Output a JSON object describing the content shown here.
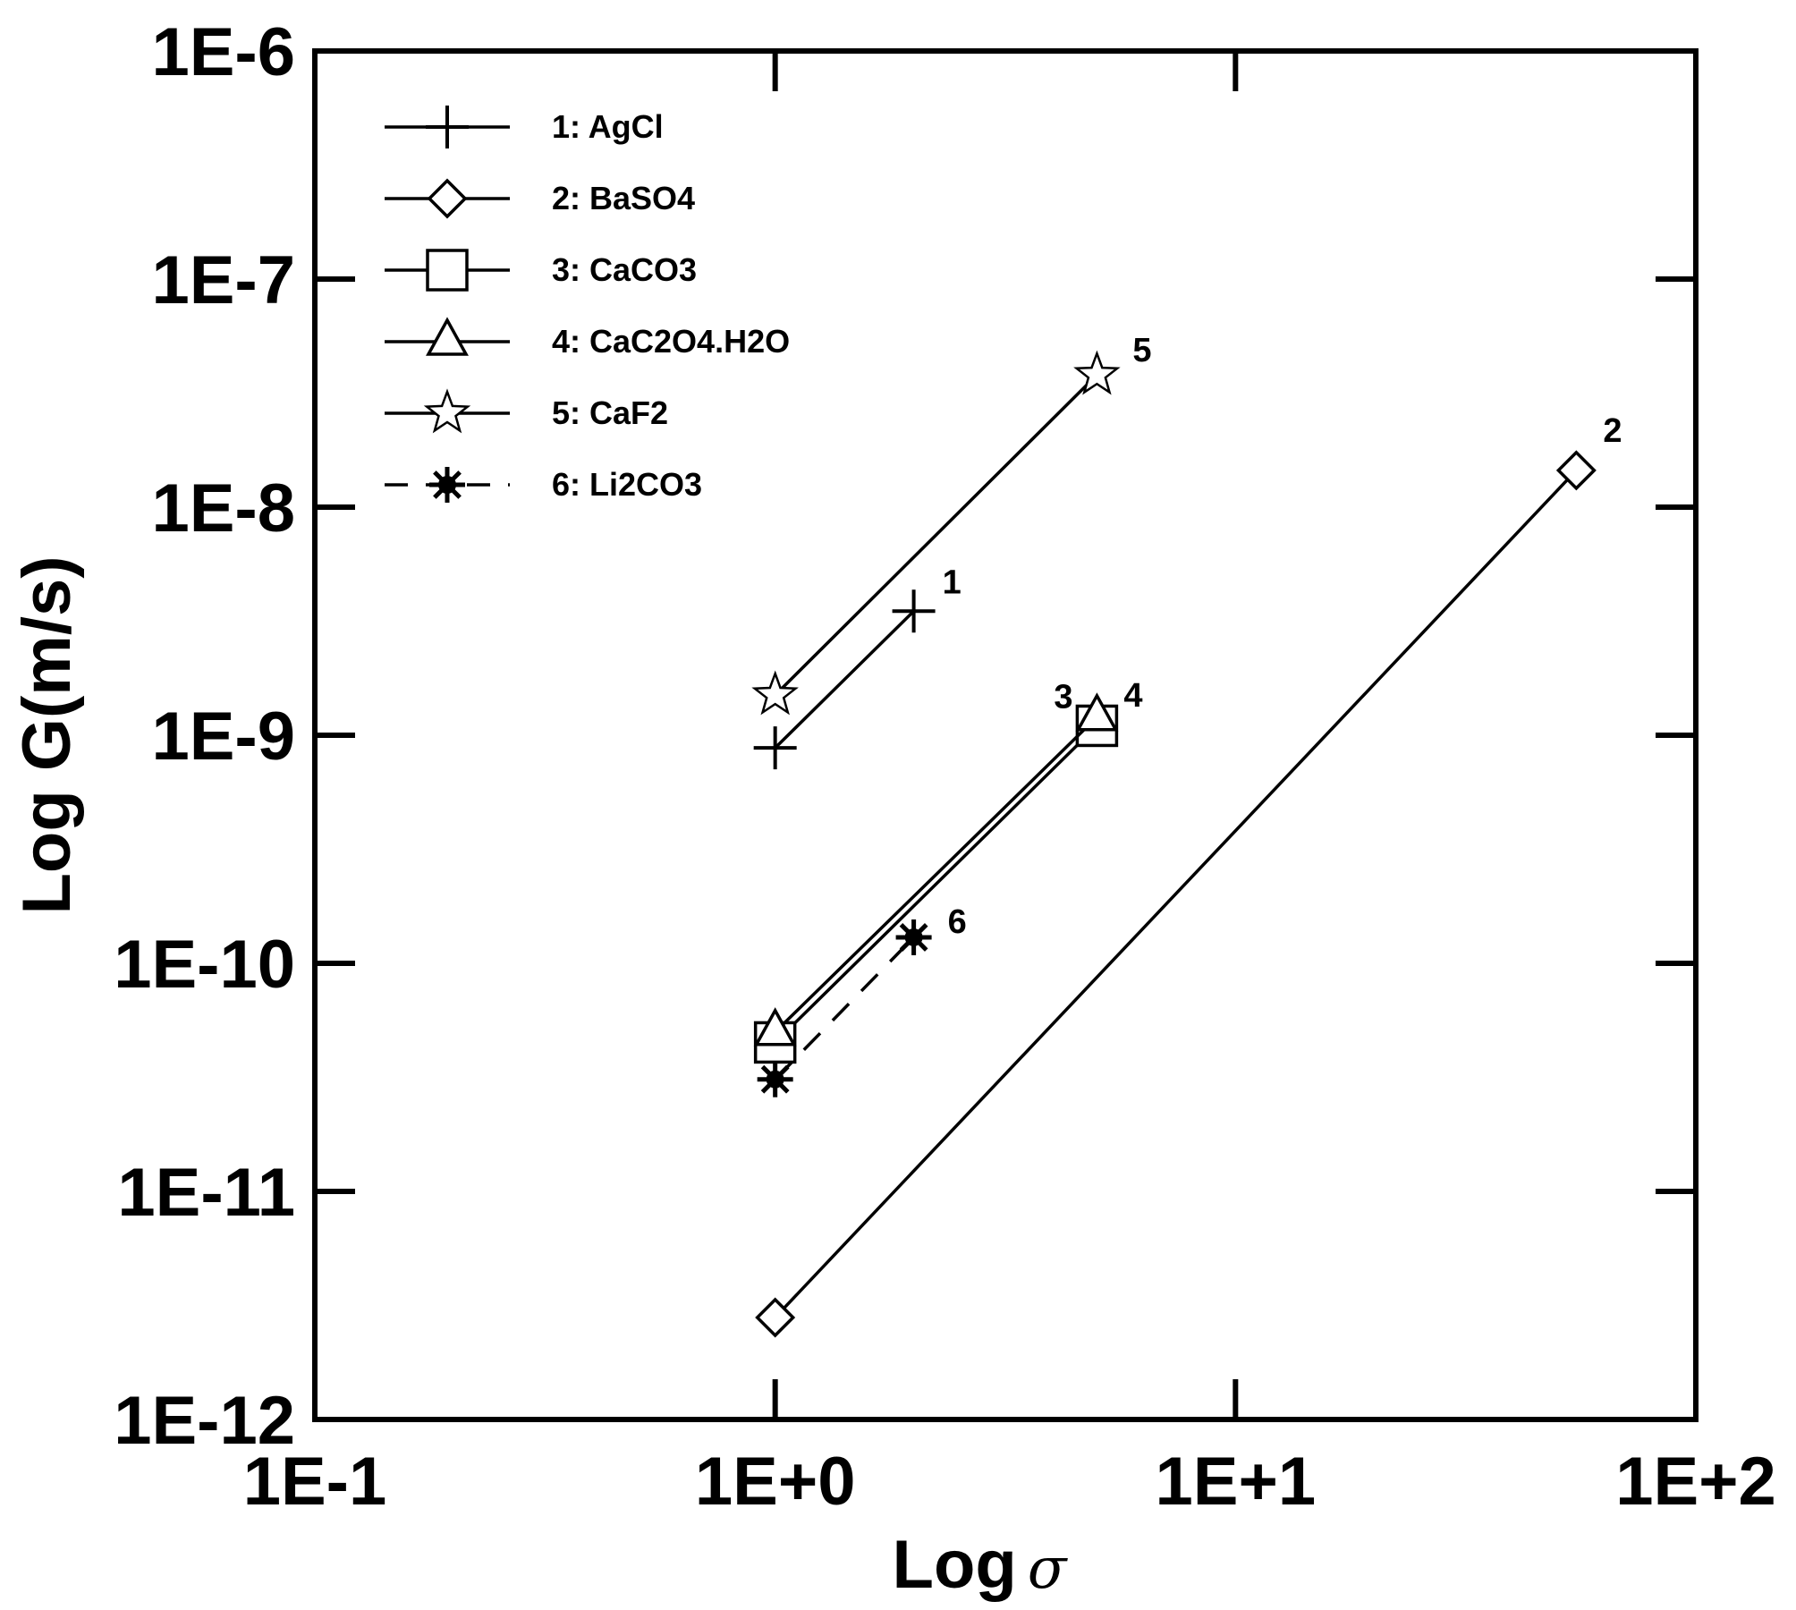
{
  "chart_data": {
    "type": "line",
    "xlabel": "Log",
    "xlabel_symbol": "σ",
    "ylabel": "Log G(m/s)",
    "xscale": "log",
    "yscale": "log",
    "xlim": [
      0.1,
      100
    ],
    "ylim": [
      1e-12,
      1e-06
    ],
    "x_tick_values": [
      0.1,
      1,
      10,
      100
    ],
    "x_tick_labels": [
      "1E-1",
      "1E+0",
      "1E+1",
      "1E+2"
    ],
    "y_tick_values": [
      1e-12,
      1e-11,
      1e-10,
      1e-09,
      1e-08,
      1e-07,
      1e-06
    ],
    "y_tick_labels": [
      "1E-12",
      "1E-11",
      "1E-10",
      "1E-9",
      "1E-8",
      "1E-7",
      "1E-6"
    ],
    "grid": false,
    "legend_position": "top-left",
    "series": [
      {
        "name": "1: AgCl",
        "marker": "plus",
        "dash": "solid",
        "point_label": "1",
        "x": [
          1,
          2
        ],
        "y": [
          8.8e-10,
          3.5e-09
        ]
      },
      {
        "name": "2: BaSO4",
        "marker": "diamond",
        "dash": "solid",
        "point_label": "2",
        "x": [
          1,
          55
        ],
        "y": [
          2.8e-12,
          1.45e-08
        ]
      },
      {
        "name": "3: CaCO3",
        "marker": "square",
        "dash": "solid",
        "point_label": "3",
        "x": [
          1,
          5
        ],
        "y": [
          4.5e-11,
          1.1e-09
        ]
      },
      {
        "name": "4: CaC2O4.H2O",
        "marker": "triangle",
        "dash": "solid",
        "point_label": "4",
        "x": [
          1,
          5
        ],
        "y": [
          5e-11,
          1.2e-09
        ]
      },
      {
        "name": "5: CaF2",
        "marker": "star",
        "dash": "solid",
        "point_label": "5",
        "x": [
          1,
          5
        ],
        "y": [
          1.5e-09,
          3.8e-08
        ]
      },
      {
        "name": "6: Li2CO3",
        "marker": "asterisk",
        "dash": "dashed",
        "point_label": "6",
        "x": [
          1,
          2
        ],
        "y": [
          3.1e-11,
          1.3e-10
        ]
      }
    ]
  }
}
